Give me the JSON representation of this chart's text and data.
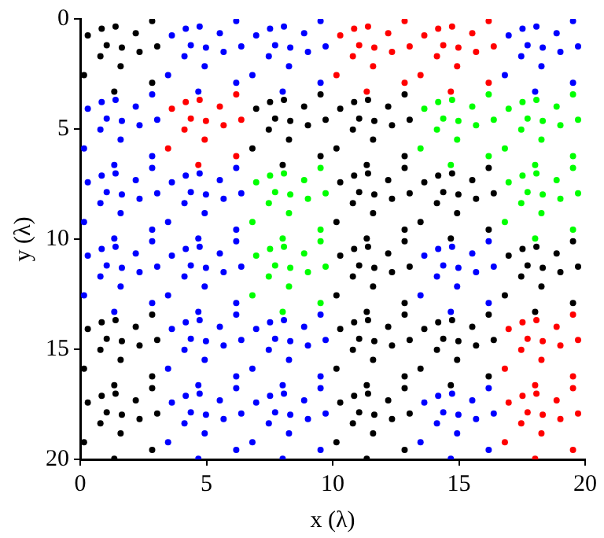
{
  "chart_data": {
    "type": "scatter",
    "xlabel": "x (λ)",
    "ylabel": "y (λ)",
    "xlim": [
      0,
      20
    ],
    "ylim": [
      20,
      0
    ],
    "xticks": [
      0,
      5,
      10,
      15,
      20
    ],
    "yticks": [
      0,
      5,
      10,
      15,
      20
    ],
    "grid": false,
    "legend": false,
    "marker": "circle",
    "series": [
      {
        "color": "#000000",
        "x": [
          0.3,
          0.85,
          1.4,
          2.85,
          2.2,
          1.05,
          1.65,
          3.05,
          2.35,
          0.8,
          1.6,
          0.15,
          2.85,
          1.35,
          6.97,
          7.52,
          8.07,
          9.52,
          8.87,
          7.72,
          8.32,
          9.72,
          9.02,
          7.47,
          8.27,
          6.82,
          9.52,
          8.02,
          10.3,
          10.85,
          11.4,
          12.85,
          12.2,
          11.05,
          11.65,
          13.05,
          12.35,
          10.8,
          11.6,
          10.15,
          12.85,
          11.35,
          10.3,
          10.85,
          11.4,
          12.85,
          12.2,
          11.05,
          11.65,
          13.05,
          12.35,
          10.8,
          11.6,
          10.15,
          12.85,
          11.35,
          13.63,
          14.18,
          14.73,
          16.18,
          15.53,
          14.38,
          14.98,
          16.38,
          15.68,
          14.13,
          14.93,
          13.48,
          16.18,
          14.68,
          10.3,
          10.85,
          11.4,
          12.85,
          12.2,
          11.05,
          11.65,
          13.05,
          12.35,
          10.8,
          11.6,
          10.15,
          12.85,
          11.35,
          16.97,
          17.52,
          18.07,
          19.52,
          18.87,
          17.72,
          18.32,
          19.72,
          19.02,
          17.47,
          18.27,
          16.82,
          19.52,
          18.02,
          0.3,
          0.85,
          1.4,
          2.85,
          2.2,
          1.05,
          1.65,
          3.05,
          2.35,
          0.8,
          1.6,
          0.15,
          2.85,
          1.35,
          10.3,
          10.85,
          11.4,
          12.85,
          12.2,
          11.05,
          11.65,
          13.05,
          12.35,
          10.8,
          11.6,
          10.15,
          12.85,
          11.35,
          13.63,
          14.18,
          14.73,
          16.18,
          15.53,
          14.38,
          14.98,
          16.38,
          15.68,
          14.13,
          14.93,
          13.48,
          16.18,
          14.68,
          0.3,
          0.85,
          1.4,
          2.85,
          2.2,
          1.05,
          1.65,
          3.05,
          2.35,
          0.8,
          1.6,
          0.15,
          2.85,
          1.35,
          10.3,
          10.85,
          11.4,
          12.85,
          12.2,
          11.05,
          11.65,
          13.05,
          12.35,
          10.8,
          11.6,
          10.15,
          12.85,
          11.35
        ],
        "values": [
          0.75,
          0.45,
          0.35,
          0.1,
          0.65,
          1.2,
          1.3,
          1.25,
          1.5,
          1.7,
          2.15,
          2.55,
          2.9,
          3.3,
          4.08,
          3.78,
          3.68,
          3.43,
          3.98,
          4.53,
          4.63,
          4.58,
          4.83,
          5.03,
          5.48,
          5.88,
          6.23,
          6.63,
          4.08,
          3.78,
          3.68,
          3.43,
          3.98,
          4.53,
          4.63,
          4.58,
          4.83,
          5.03,
          5.48,
          5.88,
          6.23,
          6.63,
          7.42,
          7.12,
          7.02,
          6.77,
          7.32,
          7.87,
          7.97,
          7.92,
          8.17,
          8.37,
          8.82,
          9.22,
          9.57,
          9.97,
          7.42,
          7.12,
          7.02,
          6.77,
          7.32,
          7.87,
          7.97,
          7.92,
          8.17,
          8.37,
          8.82,
          9.22,
          9.57,
          9.97,
          10.75,
          10.45,
          10.35,
          10.1,
          10.65,
          11.2,
          11.3,
          11.25,
          11.5,
          11.7,
          12.15,
          12.55,
          12.9,
          13.3,
          10.75,
          10.45,
          10.35,
          10.1,
          10.65,
          11.2,
          11.3,
          11.25,
          11.5,
          11.7,
          12.15,
          12.55,
          12.9,
          13.3,
          14.08,
          13.78,
          13.68,
          13.43,
          13.98,
          14.53,
          14.63,
          14.58,
          14.83,
          15.03,
          15.48,
          15.88,
          16.23,
          16.63,
          14.08,
          13.78,
          13.68,
          13.43,
          13.98,
          14.53,
          14.63,
          14.58,
          14.83,
          15.03,
          15.48,
          15.88,
          16.23,
          16.63,
          14.08,
          13.78,
          13.68,
          13.43,
          13.98,
          14.53,
          14.63,
          14.58,
          14.83,
          15.03,
          15.48,
          15.88,
          16.23,
          16.63,
          17.42,
          17.12,
          17.02,
          16.77,
          17.32,
          17.87,
          17.97,
          17.92,
          18.17,
          18.37,
          18.82,
          19.22,
          19.57,
          19.97,
          17.42,
          17.12,
          17.02,
          16.77,
          17.32,
          17.87,
          17.97,
          17.92,
          18.17,
          18.37,
          18.82,
          19.22,
          19.57,
          19.97
        ]
      },
      {
        "color": "#0000ff",
        "x": [
          3.63,
          4.18,
          4.73,
          6.18,
          5.53,
          4.38,
          4.98,
          6.38,
          5.68,
          4.13,
          4.93,
          3.48,
          6.18,
          4.68,
          6.97,
          7.52,
          8.07,
          9.52,
          8.87,
          7.72,
          8.32,
          9.72,
          9.02,
          7.47,
          8.27,
          6.82,
          9.52,
          8.02,
          16.97,
          17.52,
          18.07,
          19.52,
          18.87,
          17.72,
          18.32,
          19.72,
          19.02,
          17.47,
          18.27,
          16.82,
          19.52,
          18.02,
          0.3,
          0.85,
          1.4,
          2.85,
          2.2,
          1.05,
          1.65,
          3.05,
          2.35,
          0.8,
          1.6,
          0.15,
          2.85,
          1.35,
          0.3,
          0.85,
          1.4,
          2.85,
          2.2,
          1.05,
          1.65,
          3.05,
          2.35,
          0.8,
          1.6,
          0.15,
          2.85,
          1.35,
          3.63,
          4.18,
          4.73,
          6.18,
          5.53,
          4.38,
          4.98,
          6.38,
          5.68,
          4.13,
          4.93,
          3.48,
          6.18,
          4.68,
          0.3,
          0.85,
          1.4,
          2.85,
          2.2,
          1.05,
          1.65,
          3.05,
          2.35,
          0.8,
          1.6,
          0.15,
          2.85,
          1.35,
          3.63,
          4.18,
          4.73,
          6.18,
          5.53,
          4.38,
          4.98,
          6.38,
          5.68,
          4.13,
          4.93,
          3.48,
          6.18,
          4.68,
          13.63,
          14.18,
          14.73,
          16.18,
          15.53,
          14.38,
          14.98,
          16.38,
          15.68,
          14.13,
          14.93,
          13.48,
          16.18,
          14.68,
          3.63,
          4.18,
          4.73,
          6.18,
          5.53,
          4.38,
          4.98,
          6.38,
          5.68,
          4.13,
          4.93,
          3.48,
          6.18,
          4.68,
          6.97,
          7.52,
          8.07,
          9.52,
          8.87,
          7.72,
          8.32,
          9.72,
          9.02,
          7.47,
          8.27,
          6.82,
          9.52,
          8.02,
          3.63,
          4.18,
          4.73,
          6.18,
          5.53,
          4.38,
          4.98,
          6.38,
          5.68,
          4.13,
          4.93,
          3.48,
          6.18,
          4.68,
          6.97,
          7.52,
          8.07,
          9.52,
          8.87,
          7.72,
          8.32,
          9.72,
          9.02,
          7.47,
          8.27,
          6.82,
          9.52,
          8.02,
          13.63,
          14.18,
          14.73,
          16.18,
          15.53,
          14.38,
          14.98,
          16.38,
          15.68,
          14.13,
          14.93,
          13.48,
          16.18,
          14.68
        ],
        "values": [
          0.75,
          0.45,
          0.35,
          0.1,
          0.65,
          1.2,
          1.3,
          1.25,
          1.5,
          1.7,
          2.15,
          2.55,
          2.9,
          3.3,
          0.75,
          0.45,
          0.35,
          0.1,
          0.65,
          1.2,
          1.3,
          1.25,
          1.5,
          1.7,
          2.15,
          2.55,
          2.9,
          3.3,
          0.75,
          0.45,
          0.35,
          0.1,
          0.65,
          1.2,
          1.3,
          1.25,
          1.5,
          1.7,
          2.15,
          2.55,
          2.9,
          3.3,
          4.08,
          3.78,
          3.68,
          3.43,
          3.98,
          4.53,
          4.63,
          4.58,
          4.83,
          5.03,
          5.48,
          5.88,
          6.23,
          6.63,
          7.42,
          7.12,
          7.02,
          6.77,
          7.32,
          7.87,
          7.97,
          7.92,
          8.17,
          8.37,
          8.82,
          9.22,
          9.57,
          9.97,
          7.42,
          7.12,
          7.02,
          6.77,
          7.32,
          7.87,
          7.97,
          7.92,
          8.17,
          8.37,
          8.82,
          9.22,
          9.57,
          9.97,
          10.75,
          10.45,
          10.35,
          10.1,
          10.65,
          11.2,
          11.3,
          11.25,
          11.5,
          11.7,
          12.15,
          12.55,
          12.9,
          13.3,
          10.75,
          10.45,
          10.35,
          10.1,
          10.65,
          11.2,
          11.3,
          11.25,
          11.5,
          11.7,
          12.15,
          12.55,
          12.9,
          13.3,
          10.75,
          10.45,
          10.35,
          10.1,
          10.65,
          11.2,
          11.3,
          11.25,
          11.5,
          11.7,
          12.15,
          12.55,
          12.9,
          13.3,
          14.08,
          13.78,
          13.68,
          13.43,
          13.98,
          14.53,
          14.63,
          14.58,
          14.83,
          15.03,
          15.48,
          15.88,
          16.23,
          16.63,
          14.08,
          13.78,
          13.68,
          13.43,
          13.98,
          14.53,
          14.63,
          14.58,
          14.83,
          15.03,
          15.48,
          15.88,
          16.23,
          16.63,
          17.42,
          17.12,
          17.02,
          16.77,
          17.32,
          17.87,
          17.97,
          17.92,
          18.17,
          18.37,
          18.82,
          19.22,
          19.57,
          19.97,
          17.42,
          17.12,
          17.02,
          16.77,
          17.32,
          17.87,
          17.97,
          17.92,
          18.17,
          18.37,
          18.82,
          19.22,
          19.57,
          19.97,
          17.42,
          17.12,
          17.02,
          16.77,
          17.32,
          17.87,
          17.97,
          17.92,
          18.17,
          18.37,
          18.82,
          19.22,
          19.57,
          19.97
        ]
      },
      {
        "color": "#ff0000",
        "x": [
          10.3,
          10.85,
          11.4,
          12.85,
          12.2,
          11.05,
          11.65,
          13.05,
          12.35,
          10.8,
          11.6,
          10.15,
          12.85,
          11.35,
          13.63,
          14.18,
          14.73,
          16.18,
          15.53,
          14.38,
          14.98,
          16.38,
          15.68,
          14.13,
          14.93,
          13.48,
          16.18,
          14.68,
          3.63,
          4.18,
          4.73,
          6.18,
          5.53,
          4.38,
          4.98,
          6.38,
          5.68,
          4.13,
          4.93,
          3.48,
          6.18,
          4.68,
          16.97,
          17.52,
          18.07,
          19.52,
          18.87,
          17.72,
          18.32,
          19.72,
          19.02,
          17.47,
          18.27,
          16.82,
          19.52,
          18.02,
          16.97,
          17.52,
          18.07,
          19.52,
          18.87,
          17.72,
          18.32,
          19.72,
          19.02,
          17.47,
          18.27,
          16.82,
          19.52,
          18.02
        ],
        "values": [
          0.75,
          0.45,
          0.35,
          0.1,
          0.65,
          1.2,
          1.3,
          1.25,
          1.5,
          1.7,
          2.15,
          2.55,
          2.9,
          3.3,
          0.75,
          0.45,
          0.35,
          0.1,
          0.65,
          1.2,
          1.3,
          1.25,
          1.5,
          1.7,
          2.15,
          2.55,
          2.9,
          3.3,
          4.08,
          3.78,
          3.68,
          3.43,
          3.98,
          4.53,
          4.63,
          4.58,
          4.83,
          5.03,
          5.48,
          5.88,
          6.23,
          6.63,
          14.08,
          13.78,
          13.68,
          13.43,
          13.98,
          14.53,
          14.63,
          14.58,
          14.83,
          15.03,
          15.48,
          15.88,
          16.23,
          16.63,
          17.42,
          17.12,
          17.02,
          16.77,
          17.32,
          17.87,
          17.97,
          17.92,
          18.17,
          18.37,
          18.82,
          19.22,
          19.57,
          19.97
        ]
      },
      {
        "color": "#00ff00",
        "x": [
          13.63,
          14.18,
          14.73,
          16.18,
          15.53,
          14.38,
          14.98,
          16.38,
          15.68,
          14.13,
          14.93,
          13.48,
          16.18,
          14.68,
          16.97,
          17.52,
          18.07,
          19.52,
          18.87,
          17.72,
          18.32,
          19.72,
          19.02,
          17.47,
          18.27,
          16.82,
          19.52,
          18.02,
          6.97,
          7.52,
          8.07,
          9.52,
          8.87,
          7.72,
          8.32,
          9.72,
          9.02,
          7.47,
          8.27,
          6.82,
          9.52,
          8.02,
          16.97,
          17.52,
          18.07,
          19.52,
          18.87,
          17.72,
          18.32,
          19.72,
          19.02,
          17.47,
          18.27,
          16.82,
          19.52,
          18.02,
          6.97,
          7.52,
          8.07,
          9.52,
          8.87,
          7.72,
          8.32,
          9.72,
          9.02,
          7.47,
          8.27,
          6.82,
          9.52,
          8.02
        ],
        "values": [
          4.08,
          3.78,
          3.68,
          3.43,
          3.98,
          4.53,
          4.63,
          4.58,
          4.83,
          5.03,
          5.48,
          5.88,
          6.23,
          6.63,
          4.08,
          3.78,
          3.68,
          3.43,
          3.98,
          4.53,
          4.63,
          4.58,
          4.83,
          5.03,
          5.48,
          5.88,
          6.23,
          6.63,
          7.42,
          7.12,
          7.02,
          6.77,
          7.32,
          7.87,
          7.97,
          7.92,
          8.17,
          8.37,
          8.82,
          9.22,
          9.57,
          9.97,
          7.42,
          7.12,
          7.02,
          6.77,
          7.32,
          7.87,
          7.97,
          7.92,
          8.17,
          8.37,
          8.82,
          9.22,
          9.57,
          9.97,
          10.75,
          10.45,
          10.35,
          10.1,
          10.65,
          11.2,
          11.3,
          11.25,
          11.5,
          11.7,
          12.15,
          12.55,
          12.9,
          13.3
        ]
      }
    ]
  }
}
